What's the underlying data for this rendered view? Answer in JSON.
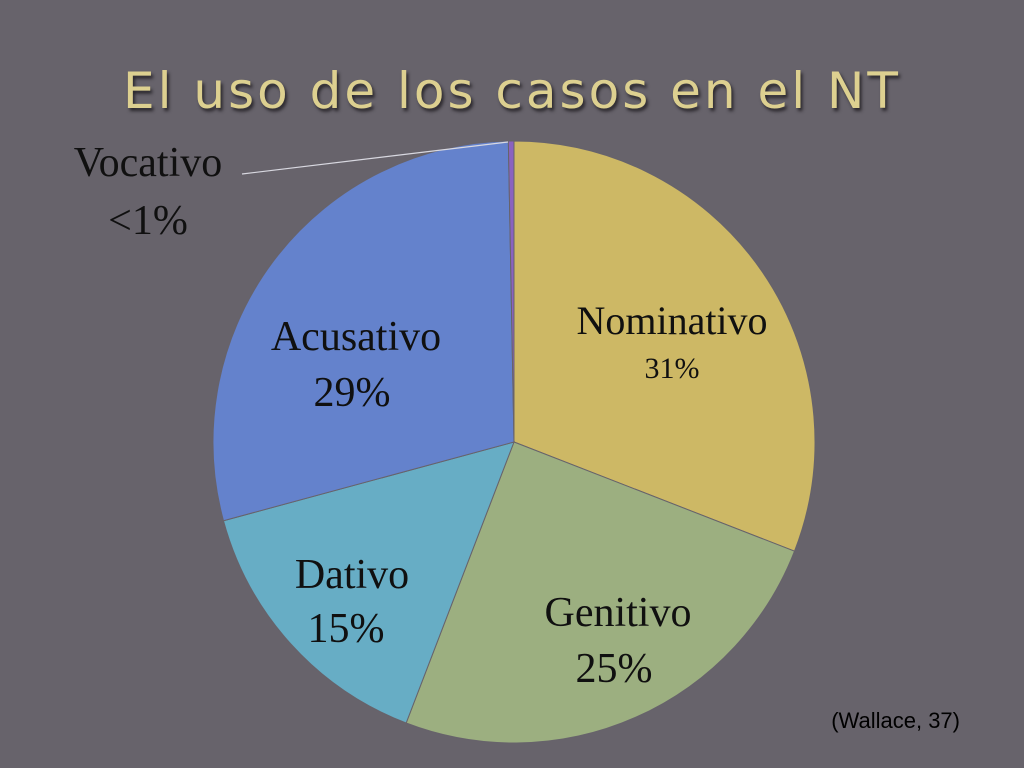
{
  "slide": {
    "title": "El uso de los casos en el NT",
    "source": "(Wallace, 37)"
  },
  "chart_data": {
    "type": "pie",
    "title": "El uso de los casos en el NT",
    "slices": [
      {
        "name": "Nominativo",
        "value": 31,
        "value_label": "31%",
        "color": "#cdb865"
      },
      {
        "name": "Genitivo",
        "value": 25,
        "value_label": "25%",
        "color": "#9caf80"
      },
      {
        "name": "Dativo",
        "value": 15,
        "value_label": "15%",
        "color": "#67adc5"
      },
      {
        "name": "Acusativo",
        "value": 29,
        "value_label": "29%",
        "color": "#6482cc"
      },
      {
        "name": "Vocativo",
        "value": 0.3,
        "value_label": "<1%",
        "color": "#8a62c0"
      }
    ],
    "start_angle_deg": 0,
    "direction": "clockwise",
    "stroke_color": "#67636b"
  }
}
